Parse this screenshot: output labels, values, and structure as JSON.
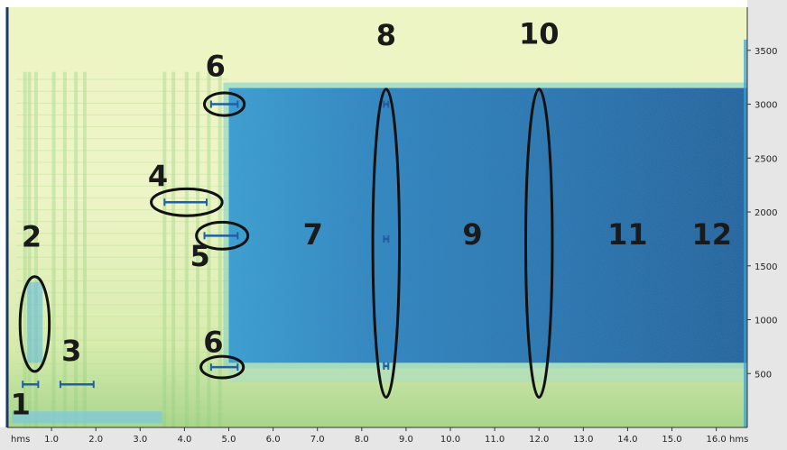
{
  "chart_data": {
    "type": "heatmap",
    "title": "",
    "xlabel": "",
    "ylabel": "",
    "x_unit_label": "hms",
    "xlim": [
      0.0,
      16.7
    ],
    "ylim": [
      0,
      3900
    ],
    "x_ticks": [
      "1.0",
      "2.0",
      "3.0",
      "4.0",
      "5.0",
      "6.0",
      "7.0",
      "8.0",
      "9.0",
      "10.0",
      "11.0",
      "12.0",
      "13.0",
      "14.0",
      "15.0",
      "16.0"
    ],
    "x_tick_values": [
      1,
      2,
      3,
      4,
      5,
      6,
      7,
      8,
      9,
      10,
      11,
      12,
      13,
      14,
      15,
      16
    ],
    "y_ticks": [
      "500",
      "1000",
      "1500",
      "2000",
      "2500",
      "3000",
      "3500"
    ],
    "y_tick_values": [
      500,
      1000,
      1500,
      2000,
      2500,
      3000,
      3500
    ],
    "colors": {
      "low": "#eef5c4",
      "mid": "#a6d98a",
      "high": "#3aa6d8",
      "max": "#1f5f9a",
      "axis_bg": "#e6e6e6"
    },
    "noise_band": {
      "x_start": 5.0,
      "x_end": 16.7,
      "y_low": 600,
      "y_high": 3150
    },
    "annotations": [
      {
        "label": "1",
        "x": 0.3,
        "y": 120
      },
      {
        "label": "2",
        "x": 0.55,
        "y": 1680
      },
      {
        "label": "3",
        "x": 1.45,
        "y": 620
      },
      {
        "label": "4",
        "x": 3.4,
        "y": 2240
      },
      {
        "label": "5",
        "x": 4.35,
        "y": 1500
      },
      {
        "label": "6",
        "x": 4.7,
        "y": 3260
      },
      {
        "label": "6",
        "x": 4.65,
        "y": 700
      },
      {
        "label": "7",
        "x": 6.9,
        "y": 1700
      },
      {
        "label": "8",
        "x": 8.55,
        "y": 3550
      },
      {
        "label": "9",
        "x": 10.5,
        "y": 1700
      },
      {
        "label": "10",
        "x": 12.0,
        "y": 3560
      },
      {
        "label": "11",
        "x": 14.0,
        "y": 1700
      },
      {
        "label": "12",
        "x": 15.9,
        "y": 1700
      }
    ],
    "ellipses": [
      {
        "cx": 0.62,
        "cy": 960,
        "rx": 0.33,
        "ry": 440
      },
      {
        "cx": 4.05,
        "cy": 2090,
        "rx": 0.8,
        "ry": 125
      },
      {
        "cx": 4.85,
        "cy": 1780,
        "rx": 0.58,
        "ry": 125
      },
      {
        "cx": 4.9,
        "cy": 3000,
        "rx": 0.45,
        "ry": 105
      },
      {
        "cx": 4.85,
        "cy": 560,
        "rx": 0.48,
        "ry": 100
      },
      {
        "cx": 8.55,
        "cy": 1710,
        "rx": 0.3,
        "ry": 1430
      },
      {
        "cx": 12.0,
        "cy": 1710,
        "rx": 0.3,
        "ry": 1430
      }
    ],
    "markers": [
      {
        "x1": 0.35,
        "x2": 0.7,
        "y": 400
      },
      {
        "x1": 1.2,
        "x2": 1.95,
        "y": 400
      },
      {
        "x1": 3.55,
        "x2": 4.5,
        "y": 2090
      },
      {
        "x1": 4.45,
        "x2": 5.2,
        "y": 1780
      },
      {
        "x1": 4.6,
        "x2": 5.2,
        "y": 3000
      },
      {
        "x1": 4.6,
        "x2": 5.2,
        "y": 560
      },
      {
        "x1": 8.5,
        "x2": 8.6,
        "y": 3000
      },
      {
        "x1": 8.5,
        "x2": 8.6,
        "y": 1750
      },
      {
        "x1": 8.5,
        "x2": 8.6,
        "y": 570
      }
    ]
  }
}
